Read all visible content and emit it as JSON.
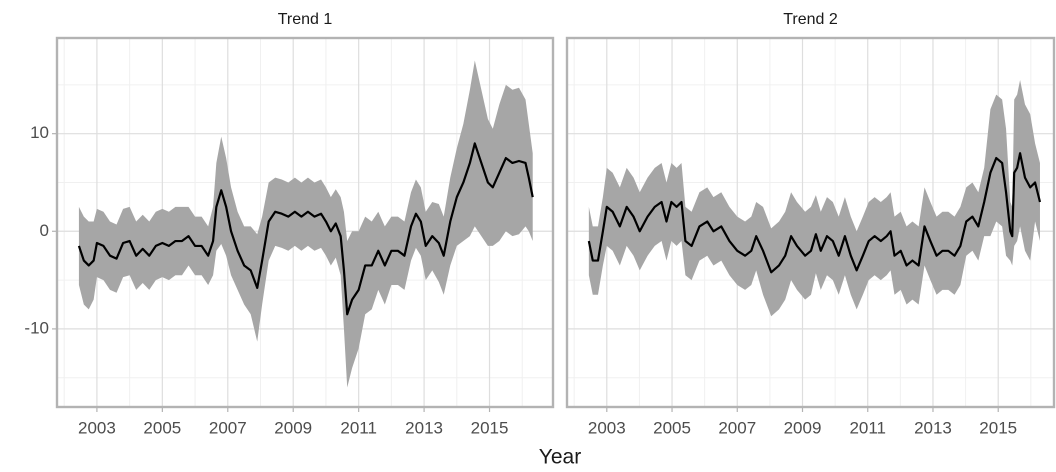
{
  "chart_data": [
    {
      "type": "line",
      "title": "Trend 1",
      "xlabel": "Year",
      "xlim": [
        2001.78,
        2016.94
      ],
      "xticks": [
        2003,
        2005,
        2007,
        2009,
        2011,
        2013,
        2015
      ],
      "minor_xticks": [
        2002,
        2004,
        2006,
        2008,
        2010,
        2012,
        2014,
        2016
      ],
      "ylim": [
        -18,
        19.8
      ],
      "yticks": [
        -10,
        0,
        10
      ],
      "minor_yticks": [
        -15,
        -5,
        5,
        15
      ],
      "ytick_labels": true,
      "grid": true,
      "x": [
        2002.45,
        2002.6,
        2002.75,
        2002.9,
        2003.0,
        2003.2,
        2003.4,
        2003.6,
        2003.8,
        2004.0,
        2004.2,
        2004.4,
        2004.6,
        2004.8,
        2005.0,
        2005.2,
        2005.4,
        2005.6,
        2005.8,
        2006.0,
        2006.2,
        2006.4,
        2006.55,
        2006.65,
        2006.8,
        2006.95,
        2007.1,
        2007.3,
        2007.5,
        2007.7,
        2007.9,
        2008.05,
        2008.25,
        2008.45,
        2008.65,
        2008.85,
        2009.05,
        2009.25,
        2009.45,
        2009.65,
        2009.85,
        2010.0,
        2010.15,
        2010.3,
        2010.45,
        2010.55,
        2010.65,
        2010.8,
        2011.0,
        2011.2,
        2011.4,
        2011.6,
        2011.8,
        2012.0,
        2012.2,
        2012.4,
        2012.6,
        2012.75,
        2012.9,
        2013.05,
        2013.25,
        2013.45,
        2013.6,
        2013.8,
        2014.0,
        2014.2,
        2014.4,
        2014.55,
        2014.75,
        2014.95,
        2015.1,
        2015.3,
        2015.5,
        2015.7,
        2015.9,
        2016.1,
        2016.2,
        2016.32
      ],
      "series": [
        {
          "color": "#000000",
          "values": [
            -1.5,
            -3,
            -3.5,
            -3,
            -1.2,
            -1.5,
            -2.5,
            -2.8,
            -1.2,
            -1,
            -2.5,
            -1.8,
            -2.5,
            -1.5,
            -1.2,
            -1.5,
            -1,
            -1,
            -0.5,
            -1.5,
            -1.5,
            -2.5,
            -1,
            2.5,
            4.2,
            2.5,
            0,
            -2,
            -3.5,
            -4,
            -5.8,
            -3,
            1,
            2,
            1.8,
            1.5,
            2,
            1.5,
            2,
            1.5,
            1.8,
            1,
            0,
            0.8,
            -0.5,
            -4,
            -8.5,
            -7,
            -6,
            -3.5,
            -3.5,
            -2,
            -3.5,
            -2,
            -2,
            -2.5,
            0.5,
            1.8,
            1,
            -1.5,
            -0.5,
            -1.2,
            -2.5,
            1,
            3.5,
            5,
            7,
            9,
            7,
            5,
            4.5,
            6,
            7.5,
            7,
            7.2,
            7,
            5.5,
            3.5
          ]
        }
      ],
      "band": {
        "color": "#a6a6a6",
        "lower": [
          -5.5,
          -7.5,
          -8,
          -7,
          -4.7,
          -5,
          -6,
          -6.3,
          -4.7,
          -4.5,
          -6,
          -5.3,
          -6,
          -5,
          -4.7,
          -5,
          -4.5,
          -4.5,
          -3.5,
          -4.5,
          -4.5,
          -5.5,
          -4.5,
          -2,
          -1.3,
          -2.5,
          -4.5,
          -6,
          -7.5,
          -8.5,
          -11.3,
          -7.5,
          -3,
          -1.5,
          -1.7,
          -2,
          -1.5,
          -2,
          -1.5,
          -2,
          -1.7,
          -2.5,
          -3.5,
          -2.7,
          -4.5,
          -10,
          -16,
          -14,
          -12,
          -8.5,
          -8,
          -6,
          -7.5,
          -5.5,
          -5.5,
          -6,
          -3,
          -1.7,
          -2.5,
          -5,
          -4,
          -5.2,
          -6.5,
          -3.5,
          -1.5,
          -1,
          -0.5,
          0.5,
          -0.5,
          -1.5,
          -1.5,
          -1,
          0,
          -0.5,
          -0.3,
          0.5,
          0,
          -1
        ],
        "upper": [
          2.5,
          1.5,
          1,
          1,
          2.3,
          2,
          1,
          0.7,
          2.3,
          2.5,
          1,
          1.7,
          1,
          2,
          2.3,
          2,
          2.5,
          2.5,
          2.5,
          1.5,
          1.5,
          0.5,
          2.5,
          7,
          9.7,
          7.5,
          4.5,
          2,
          0.5,
          0.5,
          -0.3,
          1.5,
          5,
          5.5,
          5.3,
          5,
          5.5,
          5,
          5.5,
          5,
          5.3,
          4.5,
          3.5,
          4.3,
          3.5,
          2,
          -1,
          0,
          0,
          1.5,
          1,
          2,
          0.5,
          1.5,
          1.5,
          1,
          4,
          5.3,
          4.5,
          2,
          3,
          2.8,
          1.5,
          5.5,
          8.5,
          11,
          14.5,
          17.5,
          14.5,
          11.5,
          10.5,
          13,
          15,
          14.5,
          14.7,
          13.5,
          11,
          8
        ]
      }
    },
    {
      "type": "line",
      "title": "Trend 2",
      "xlim": [
        2001.78,
        2016.71
      ],
      "xticks": [
        2003,
        2005,
        2007,
        2009,
        2011,
        2013,
        2015
      ],
      "minor_xticks": [
        2002,
        2004,
        2006,
        2008,
        2010,
        2012,
        2014,
        2016
      ],
      "ylim": [
        -18,
        19.8
      ],
      "yticks": [
        -10,
        0,
        10
      ],
      "minor_yticks": [
        -15,
        -5,
        5,
        15
      ],
      "ytick_labels": false,
      "grid": true,
      "x": [
        2002.45,
        2002.57,
        2002.73,
        2002.88,
        2003.0,
        2003.18,
        2003.4,
        2003.61,
        2003.82,
        2004.01,
        2004.25,
        2004.47,
        2004.68,
        2004.83,
        2004.98,
        2005.14,
        2005.29,
        2005.41,
        2005.6,
        2005.84,
        2006.08,
        2006.27,
        2006.51,
        2006.76,
        2007.0,
        2007.24,
        2007.43,
        2007.58,
        2007.79,
        2008.04,
        2008.28,
        2008.47,
        2008.65,
        2008.83,
        2009.08,
        2009.26,
        2009.41,
        2009.56,
        2009.75,
        2009.93,
        2010.11,
        2010.3,
        2010.48,
        2010.66,
        2010.85,
        2011.03,
        2011.21,
        2011.4,
        2011.58,
        2011.7,
        2011.82,
        2012.01,
        2012.19,
        2012.37,
        2012.56,
        2012.74,
        2012.92,
        2013.11,
        2013.29,
        2013.47,
        2013.66,
        2013.84,
        2014.02,
        2014.21,
        2014.39,
        2014.57,
        2014.76,
        2014.94,
        2015.12,
        2015.24,
        2015.37,
        2015.43,
        2015.49,
        2015.58,
        2015.67,
        2015.82,
        2015.98,
        2016.13,
        2016.28
      ],
      "series": [
        {
          "color": "#000000",
          "values": [
            -1,
            -3,
            -3,
            0,
            2.5,
            2,
            0.5,
            2.5,
            1.5,
            0,
            1.5,
            2.5,
            3,
            1,
            3,
            2.5,
            3,
            -1,
            -1.5,
            0.5,
            1,
            0,
            0.5,
            -1,
            -2,
            -2.5,
            -2,
            -0.5,
            -2,
            -4.2,
            -3.5,
            -2.5,
            -0.5,
            -1.5,
            -2.5,
            -2,
            -0.3,
            -2,
            -0.5,
            -1,
            -2.5,
            -0.5,
            -2.5,
            -4,
            -2.5,
            -1,
            -0.5,
            -1,
            -0.5,
            0,
            -2.5,
            -2,
            -3.5,
            -3,
            -3.5,
            0.5,
            -1,
            -2.5,
            -2,
            -2,
            -2.5,
            -1.5,
            1,
            1.5,
            0.5,
            3,
            6,
            7.5,
            7,
            4,
            0,
            -0.5,
            6,
            6.5,
            8,
            5.5,
            4.5,
            5,
            3
          ]
        }
      ],
      "band": {
        "color": "#a6a6a6",
        "lower": [
          -4.5,
          -6.5,
          -6.5,
          -3.5,
          -1.5,
          -2,
          -3.5,
          -1.5,
          -2.5,
          -4,
          -2.5,
          -1.5,
          -1,
          -3,
          -1,
          -1.5,
          -1,
          -4.5,
          -5,
          -3,
          -2.5,
          -3.5,
          -3,
          -4.5,
          -5.5,
          -6,
          -5.5,
          -4,
          -6.5,
          -8.7,
          -8,
          -7,
          -5,
          -6,
          -7,
          -6.5,
          -4.3,
          -6,
          -4.5,
          -5,
          -6.5,
          -4.5,
          -6.5,
          -8,
          -6.5,
          -5,
          -4.5,
          -5,
          -4.5,
          -4,
          -6.5,
          -6,
          -7.5,
          -7,
          -7.5,
          -3.5,
          -5,
          -6.5,
          -6,
          -6,
          -6.5,
          -5.5,
          -2.5,
          -2,
          -3,
          -0.5,
          -0.5,
          1,
          0.5,
          -2.5,
          -3,
          -3.5,
          -1.5,
          -1,
          0.5,
          -2,
          -3,
          1,
          -1
        ],
        "upper": [
          2.5,
          0.5,
          0.5,
          3.5,
          6.5,
          6,
          4.5,
          6.5,
          5.5,
          4,
          5.5,
          6.5,
          7,
          5,
          7,
          6.5,
          7,
          2.5,
          2,
          4,
          4.5,
          3.5,
          4,
          2.5,
          1.5,
          1,
          1.5,
          3,
          2.5,
          0.3,
          1,
          2,
          4,
          3,
          2,
          2.5,
          3.7,
          2,
          3.5,
          3,
          1.5,
          3.5,
          1.5,
          0,
          1.5,
          3,
          3.5,
          3,
          3.5,
          4,
          1.5,
          2,
          0.5,
          1,
          0.5,
          4.5,
          3,
          1.5,
          2,
          2,
          1.5,
          2.5,
          4.5,
          5,
          4,
          6.5,
          12.5,
          14,
          13.5,
          10.5,
          3,
          2.5,
          13.5,
          14,
          15.5,
          13,
          12,
          9,
          7
        ]
      }
    }
  ]
}
